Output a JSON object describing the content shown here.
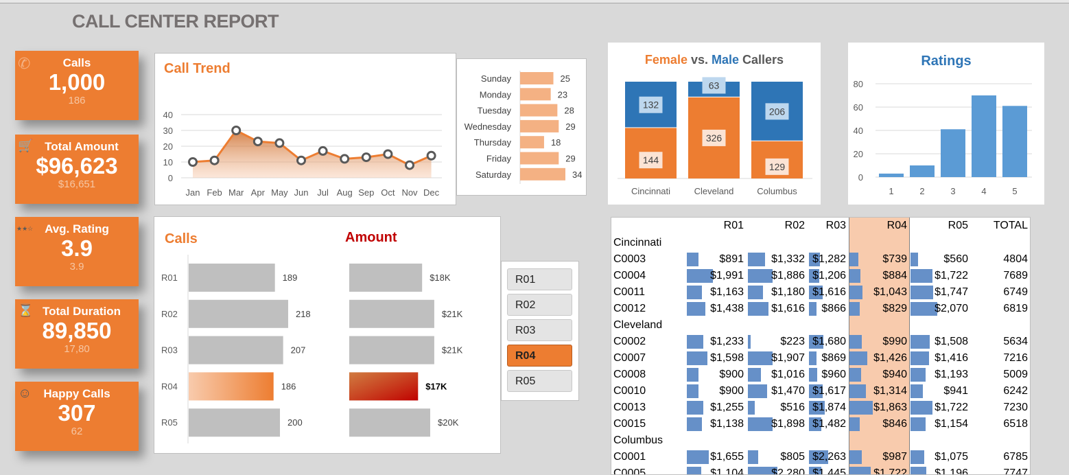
{
  "title": "CALL CENTER REPORT",
  "kpis": [
    {
      "label": "Calls",
      "value": "1,000",
      "sub": "186",
      "icon": "phone-icon"
    },
    {
      "label": "Total Amount",
      "value": "$96,623",
      "sub": "$16,651",
      "icon": "cart-icon"
    },
    {
      "label": "Avg. Rating",
      "value": "3.9",
      "sub": "3.9",
      "icon": "stars-icon"
    },
    {
      "label": "Total Duration",
      "value": "89,850",
      "sub": "17,80",
      "icon": "hourglass-icon"
    },
    {
      "label": "Happy Calls",
      "value": "307",
      "sub": "62",
      "icon": "smiley-icon"
    }
  ],
  "colors": {
    "orange": "#ED7D31",
    "blue": "#2E75B6",
    "lightblue": "#5B9BD5",
    "gray": "#BFBFBF"
  },
  "chart_data": [
    {
      "type": "area",
      "title": "Call Trend",
      "categories": [
        "Jan",
        "Feb",
        "Mar",
        "Apr",
        "May",
        "Jun",
        "Jul",
        "Aug",
        "Sep",
        "Oct",
        "Nov",
        "Dec"
      ],
      "values": [
        10,
        11,
        30,
        23,
        22,
        11,
        17,
        12,
        13,
        15,
        8,
        14
      ],
      "ylim": [
        0,
        40
      ],
      "yticks": [
        "0",
        "10",
        "20",
        "30",
        "40"
      ]
    },
    {
      "type": "bar",
      "title": "",
      "categories": [
        "Sunday",
        "Monday",
        "Tuesday",
        "Wednesday",
        "Thursday",
        "Friday",
        "Saturday"
      ],
      "values": [
        25,
        23,
        28,
        29,
        18,
        29,
        34
      ],
      "labels": [
        "25",
        "23",
        "28",
        "29",
        "18",
        "29",
        "34"
      ]
    },
    {
      "type": "bar",
      "title_parts": [
        "Female",
        " vs. ",
        "Male",
        " Callers"
      ],
      "stacked": "100%",
      "categories": [
        "Cincinnati",
        "Cleveland",
        "Columbus"
      ],
      "series": [
        {
          "name": "Female",
          "values": [
            144,
            326,
            129
          ],
          "labels": [
            "144",
            "326",
            "129"
          ]
        },
        {
          "name": "Male",
          "values": [
            132,
            63,
            206
          ],
          "labels": [
            "132",
            "63",
            "206"
          ]
        }
      ]
    },
    {
      "type": "bar",
      "title": "Ratings",
      "categories": [
        "1",
        "2",
        "3",
        "4",
        "5"
      ],
      "values": [
        3,
        10,
        41,
        70,
        61
      ],
      "ylim": [
        0,
        80
      ],
      "yticks": [
        "0",
        "20",
        "40",
        "60",
        "80"
      ]
    },
    {
      "type": "bar",
      "title": "Calls",
      "categories": [
        "R01",
        "R02",
        "R03",
        "R04",
        "R05"
      ],
      "values": [
        189,
        218,
        207,
        186,
        200
      ],
      "labels": [
        "189",
        "218",
        "207",
        "186",
        "200"
      ],
      "highlight": "R04"
    },
    {
      "type": "bar",
      "title": "Amount",
      "categories": [
        "R01",
        "R02",
        "R03",
        "R04",
        "R05"
      ],
      "values": [
        18,
        21,
        21,
        17,
        20
      ],
      "labels": [
        "$18K",
        "$21K",
        "$21K",
        "$17K",
        "$20K"
      ],
      "highlight": "R04"
    }
  ],
  "slicer": {
    "items": [
      "R01",
      "R02",
      "R03",
      "R04",
      "R05"
    ],
    "selected": "R04"
  },
  "table": {
    "headers": [
      "R01",
      "R02",
      "R03",
      "R04",
      "R05",
      "TOTAL"
    ],
    "groups": [
      {
        "city": "Cincinnati",
        "rows": [
          {
            "id": "C0003",
            "v": [
              891,
              1332,
              1282,
              739,
              560
            ],
            "t": [
              "$891",
              "$1,332",
              "$1,282",
              "$739",
              "$560"
            ],
            "total": "4804"
          },
          {
            "id": "C0004",
            "v": [
              1991,
              1886,
              1206,
              884,
              1722
            ],
            "t": [
              "$1,991",
              "$1,886",
              "$1,206",
              "$884",
              "$1,722"
            ],
            "total": "7689"
          },
          {
            "id": "C0011",
            "v": [
              1163,
              1180,
              1616,
              1043,
              1747
            ],
            "t": [
              "$1,163",
              "$1,180",
              "$1,616",
              "$1,043",
              "$1,747"
            ],
            "total": "6749"
          },
          {
            "id": "C0012",
            "v": [
              1438,
              1616,
              866,
              829,
              2070
            ],
            "t": [
              "$1,438",
              "$1,616",
              "$866",
              "$829",
              "$2,070"
            ],
            "total": "6819"
          }
        ]
      },
      {
        "city": "Cleveland",
        "rows": [
          {
            "id": "C0002",
            "v": [
              1233,
              223,
              1680,
              990,
              1508
            ],
            "t": [
              "$1,233",
              "$223",
              "$1,680",
              "$990",
              "$1,508"
            ],
            "total": "5634"
          },
          {
            "id": "C0007",
            "v": [
              1598,
              1907,
              869,
              1426,
              1416
            ],
            "t": [
              "$1,598",
              "$1,907",
              "$869",
              "$1,426",
              "$1,416"
            ],
            "total": "7216"
          },
          {
            "id": "C0008",
            "v": [
              900,
              1016,
              960,
              940,
              1193
            ],
            "t": [
              "$900",
              "$1,016",
              "$960",
              "$940",
              "$1,193"
            ],
            "total": "5009"
          },
          {
            "id": "C0010",
            "v": [
              900,
              1470,
              1617,
              1314,
              941
            ],
            "t": [
              "$900",
              "$1,470",
              "$1,617",
              "$1,314",
              "$941"
            ],
            "total": "6242"
          },
          {
            "id": "C0013",
            "v": [
              1255,
              516,
              1874,
              1863,
              1722
            ],
            "t": [
              "$1,255",
              "$516",
              "$1,874",
              "$1,863",
              "$1,722"
            ],
            "total": "7230"
          },
          {
            "id": "C0015",
            "v": [
              1138,
              1898,
              1482,
              846,
              1154
            ],
            "t": [
              "$1,138",
              "$1,898",
              "$1,482",
              "$846",
              "$1,154"
            ],
            "total": "6518"
          }
        ]
      },
      {
        "city": "Columbus",
        "rows": [
          {
            "id": "C0001",
            "v": [
              1655,
              805,
              2263,
              987,
              1075
            ],
            "t": [
              "$1,655",
              "$805",
              "$2,263",
              "$987",
              "$1,075"
            ],
            "total": "6785"
          },
          {
            "id": "C0005",
            "v": [
              1104,
              2280,
              1445,
              1722,
              1196
            ],
            "t": [
              "$1,104",
              "$2,280",
              "$1,445",
              "$1,722",
              "$1,196"
            ],
            "total": "7747"
          }
        ]
      }
    ]
  }
}
